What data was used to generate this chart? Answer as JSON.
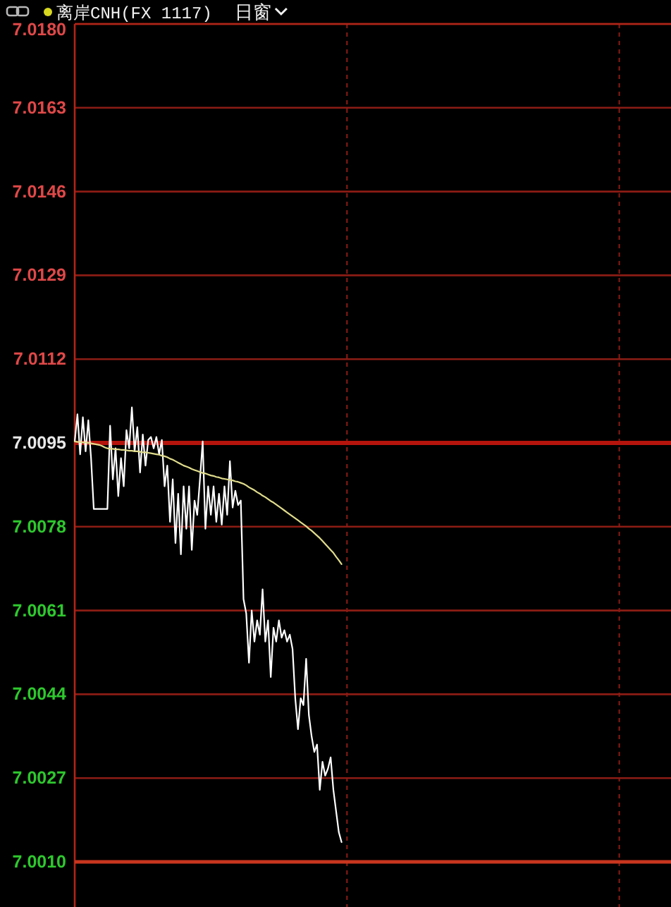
{
  "chart_data": {
    "type": "line",
    "title": "离岸CNH(FX 1117)",
    "subtitle": "日窗",
    "categories": [
      null,
      null,
      null,
      null,
      null,
      null,
      null,
      null,
      null,
      null,
      null,
      null,
      null,
      null,
      null,
      null,
      null,
      null,
      null,
      null,
      null,
      null,
      null,
      null,
      null,
      null,
      null,
      null,
      null,
      null,
      null,
      null,
      null,
      null,
      null,
      null,
      null,
      null,
      null,
      null,
      null,
      null,
      null,
      null,
      null,
      null,
      null,
      null,
      null,
      null,
      null,
      null,
      null,
      null,
      null,
      null,
      null,
      null,
      null,
      null,
      null,
      null,
      null,
      null,
      null,
      null,
      null,
      null,
      null,
      null,
      null,
      null,
      null,
      null,
      null,
      null,
      null,
      null,
      null,
      null,
      null,
      null,
      null,
      null,
      null,
      null,
      null,
      null,
      null,
      null,
      null,
      null,
      null,
      null,
      null,
      null,
      null,
      null,
      null,
      null,
      null,
      null,
      null,
      null,
      null,
      null,
      null,
      null,
      null,
      null,
      null,
      null,
      null,
      null,
      null,
      null,
      null,
      null,
      null,
      null,
      null,
      null,
      null,
      null,
      null,
      null,
      null,
      null,
      null,
      null,
      null,
      null,
      null,
      null,
      null,
      null,
      null,
      null,
      null,
      null,
      null,
      null,
      null,
      null,
      null,
      null,
      null,
      null,
      null,
      null,
      null,
      null,
      null,
      null,
      null,
      null,
      null,
      null,
      null,
      null,
      null,
      null,
      null,
      null,
      null,
      null,
      null,
      null,
      null,
      null,
      null,
      null,
      null,
      null,
      null,
      null,
      null,
      null,
      null,
      null,
      null,
      null,
      null,
      null,
      null,
      null,
      null,
      null,
      null,
      null,
      null,
      null,
      null,
      null,
      null,
      null,
      null,
      null,
      null,
      null,
      null,
      null,
      null,
      null,
      null,
      null,
      null,
      null,
      null,
      null,
      null,
      null,
      null,
      null,
      null,
      null,
      null,
      null,
      null
    ],
    "series": [
      {
        "color": "#ffffff",
        "values": [
          7.00953,
          7.01008,
          7.00927,
          7.01002,
          7.00933,
          7.00996,
          7.00919,
          7.00816,
          7.00816,
          7.00816,
          7.00816,
          7.00816,
          7.00816,
          7.00985,
          7.00876,
          7.00939,
          7.00842,
          7.00919,
          7.00862,
          7.00976,
          7.00939,
          7.01022,
          7.00933,
          7.00982,
          7.0089,
          7.00967,
          7.00904,
          7.00956,
          7.00962,
          7.00939,
          7.00962,
          7.00927,
          7.00956,
          7.00862,
          7.00904,
          7.0079,
          7.00876,
          7.00747,
          7.00847,
          7.00724,
          7.00862,
          7.00776,
          7.00862,
          7.00733,
          7.00833,
          7.00804,
          7.00876,
          7.00953,
          7.00776,
          7.00862,
          7.00804,
          7.00862,
          7.0079,
          7.00847,
          7.00784,
          7.00862,
          7.00804,
          7.00913,
          7.00819,
          7.00853,
          7.00824,
          7.00833,
          7.00633,
          7.00604,
          7.00504,
          7.0061,
          7.00547,
          7.0059,
          7.00561,
          7.00653,
          7.00547,
          7.0059,
          7.00475,
          7.00575,
          7.00547,
          7.0059,
          7.00555,
          7.0057,
          7.00547,
          7.00561,
          7.00532,
          7.00432,
          7.00369,
          7.00432,
          7.00418,
          7.00512,
          7.00398,
          7.00355,
          7.00323,
          7.00338,
          7.00246,
          7.00303,
          7.00275,
          7.00289,
          7.00312,
          7.00246,
          7.00203,
          7.0016,
          7.0014,
          null,
          null,
          null,
          null,
          null,
          null,
          null,
          null,
          null,
          null,
          null,
          null,
          null,
          null,
          null,
          null,
          null,
          null,
          null,
          null,
          null,
          null,
          null,
          null,
          null,
          null,
          null,
          null,
          null,
          null,
          null,
          null,
          null,
          null,
          null,
          null,
          null,
          null,
          null,
          null,
          null,
          null,
          null,
          null,
          null,
          null,
          null,
          null,
          null,
          null,
          null,
          null,
          null,
          null,
          null,
          null,
          null,
          null,
          null,
          null,
          null,
          null,
          null,
          null,
          null,
          null,
          null,
          null,
          null,
          null,
          null,
          null,
          null,
          null,
          null,
          null,
          null,
          null,
          null,
          null,
          null,
          null,
          null,
          null,
          null,
          null,
          null,
          null,
          null,
          null,
          null,
          null,
          null,
          null,
          null,
          null,
          null,
          null,
          null,
          null,
          null,
          null,
          null,
          null,
          null,
          null,
          null,
          null,
          null,
          null,
          null,
          null,
          null,
          null,
          null,
          null,
          null,
          null,
          null,
          null
        ]
      },
      {
        "color": "#e0dc8c",
        "values": [
          7.00953,
          7.00952,
          7.00952,
          7.00951,
          7.00951,
          7.0095,
          7.00949,
          7.00948,
          7.00947,
          7.00946,
          7.00944,
          7.00941,
          7.00939,
          7.00938,
          7.00938,
          7.00937,
          7.00937,
          7.00936,
          7.00936,
          7.00935,
          7.00934,
          7.00934,
          7.00933,
          7.00933,
          7.00932,
          7.00931,
          7.00931,
          7.0093,
          7.00929,
          7.00928,
          7.00927,
          7.00926,
          7.00924,
          7.00923,
          7.00921,
          7.00918,
          7.00916,
          7.00913,
          7.0091,
          7.00907,
          7.00904,
          7.00902,
          7.009,
          7.00897,
          7.00895,
          7.00893,
          7.00891,
          7.00889,
          7.00888,
          7.00886,
          7.00884,
          7.00883,
          7.00881,
          7.0088,
          7.00878,
          7.00877,
          7.00876,
          7.00875,
          7.00874,
          7.00872,
          7.00871,
          7.00869,
          7.00867,
          7.00864,
          7.0086,
          7.00857,
          7.00854,
          7.0085,
          7.00847,
          7.00843,
          7.0084,
          7.00836,
          7.00832,
          7.00829,
          7.00825,
          7.00821,
          7.00817,
          7.00813,
          7.00809,
          7.00805,
          7.00801,
          7.00797,
          7.00793,
          7.00789,
          7.00785,
          7.00781,
          7.00776,
          7.00772,
          7.00767,
          7.00762,
          7.00757,
          7.00751,
          7.00745,
          7.00739,
          7.00733,
          7.00727,
          7.00719,
          7.00712,
          7.00704,
          null,
          null,
          null,
          null,
          null,
          null,
          null,
          null,
          null,
          null,
          null,
          null,
          null,
          null,
          null,
          null,
          null,
          null,
          null,
          null,
          null,
          null,
          null,
          null,
          null,
          null,
          null,
          null,
          null,
          null,
          null,
          null,
          null,
          null,
          null,
          null,
          null,
          null,
          null,
          null,
          null,
          null,
          null,
          null,
          null,
          null,
          null,
          null,
          null,
          null,
          null,
          null,
          null,
          null,
          null,
          null,
          null,
          null,
          null,
          null,
          null,
          null,
          null,
          null,
          null,
          null,
          null,
          null,
          null,
          null,
          null,
          null,
          null,
          null,
          null,
          null,
          null,
          null,
          null,
          null,
          null,
          null,
          null,
          null,
          null,
          null,
          null,
          null,
          null,
          null,
          null,
          null,
          null,
          null,
          null,
          null,
          null,
          null,
          null,
          null,
          null,
          null,
          null,
          null,
          null,
          null,
          null,
          null,
          null,
          null,
          null,
          null,
          null,
          null,
          null,
          null,
          null,
          null,
          null,
          null
        ]
      }
    ],
    "ylim": [
      7.001,
      7.018
    ],
    "yticks": [
      {
        "value": 7.001,
        "label": "7.0010"
      },
      7.0027,
      7.0044,
      7.0061,
      7.0078,
      7.0095,
      7.0112,
      7.0129,
      7.0146,
      7.0163,
      {
        "value": 7.018,
        "label": "7.0180"
      }
    ],
    "tick_labels": "y",
    "grid": true,
    "ref_lines": [
      {
        "axis": "y",
        "value": 7.0095,
        "color": "#b4140c"
      }
    ]
  }
}
